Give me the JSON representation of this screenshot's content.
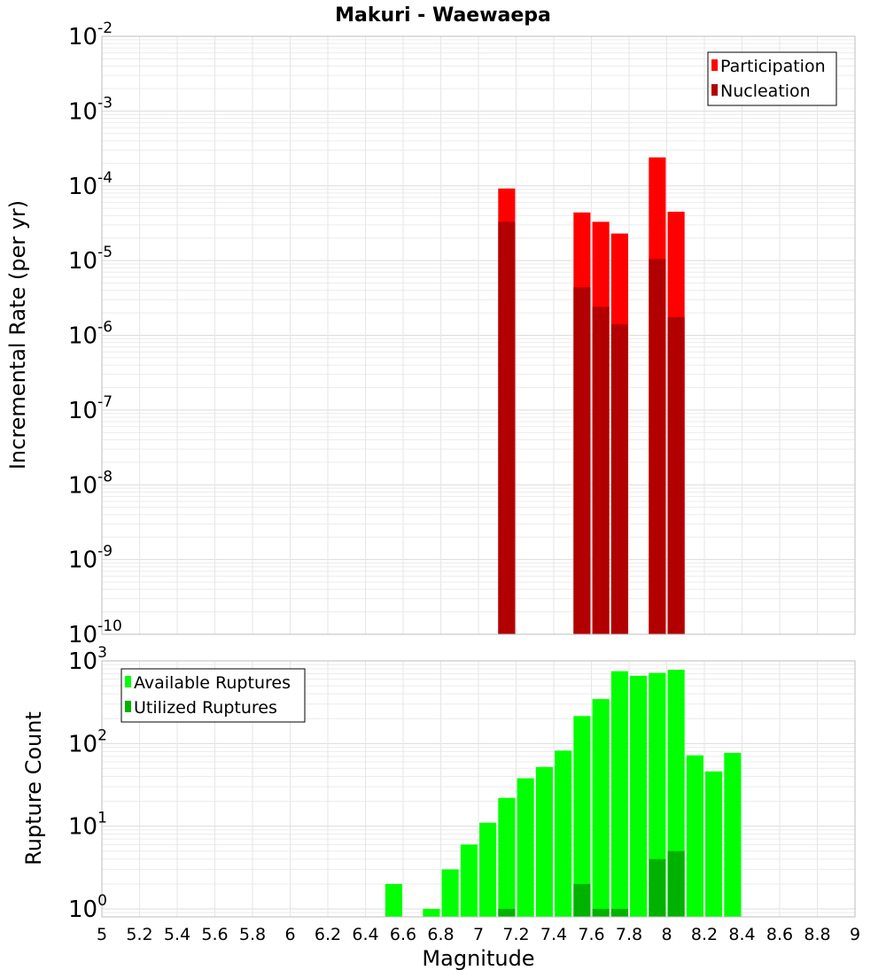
{
  "chart_data": [
    {
      "type": "bar",
      "title": "Makuri - Waewaepa",
      "xlabel": "Magnitude",
      "ylabel": "Incremental Rate (per yr)",
      "yscale": "log",
      "xlim": [
        5,
        9
      ],
      "ylim": [
        1e-10,
        0.01
      ],
      "y_tick_exponents": [
        -10,
        -9,
        -8,
        -7,
        -6,
        -5,
        -4,
        -3,
        -2
      ],
      "legend_position": "top-right",
      "bar_width": 0.09,
      "series": [
        {
          "name": "Participation",
          "color": "#ff0000",
          "x": [
            7.15,
            7.55,
            7.65,
            7.75,
            7.95,
            8.05
          ],
          "values": [
            9.2e-05,
            4.4e-05,
            3.3e-05,
            2.3e-05,
            0.00024,
            4.5e-05
          ]
        },
        {
          "name": "Nucleation",
          "color": "#b20000",
          "x": [
            7.15,
            7.55,
            7.65,
            7.75,
            7.95,
            8.05
          ],
          "values": [
            3.3e-05,
            4.4e-06,
            2.4e-06,
            1.4e-06,
            1.05e-05,
            1.75e-06
          ]
        }
      ]
    },
    {
      "type": "bar",
      "title": "",
      "xlabel": "Magnitude",
      "ylabel": "Rupture Count",
      "yscale": "log",
      "xlim": [
        5,
        9
      ],
      "ylim": [
        0.8,
        1000
      ],
      "y_tick_exponents": [
        0,
        1,
        2,
        3
      ],
      "x_ticks": [
        "5",
        "5.2",
        "5.4",
        "5.6",
        "5.8",
        "6",
        "6.2",
        "6.4",
        "6.6",
        "6.8",
        "7",
        "7.2",
        "7.4",
        "7.6",
        "7.8",
        "8",
        "8.2",
        "8.4",
        "8.6",
        "8.8",
        "9"
      ],
      "legend_position": "top-left",
      "bar_width": 0.09,
      "series": [
        {
          "name": "Available Ruptures",
          "color": "#00ff00",
          "x": [
            6.55,
            6.75,
            6.85,
            6.95,
            7.05,
            7.15,
            7.25,
            7.35,
            7.45,
            7.55,
            7.65,
            7.75,
            7.85,
            7.95,
            8.05,
            8.15,
            8.25,
            8.35
          ],
          "values": [
            2,
            1,
            3,
            6,
            11,
            22,
            38,
            52,
            82,
            215,
            345,
            750,
            660,
            715,
            780,
            72,
            46,
            77
          ]
        },
        {
          "name": "Utilized Ruptures",
          "color": "#00b200",
          "x": [
            7.15,
            7.55,
            7.65,
            7.75,
            7.95,
            8.05
          ],
          "values": [
            1,
            2,
            1,
            1,
            4,
            5
          ]
        }
      ]
    }
  ]
}
